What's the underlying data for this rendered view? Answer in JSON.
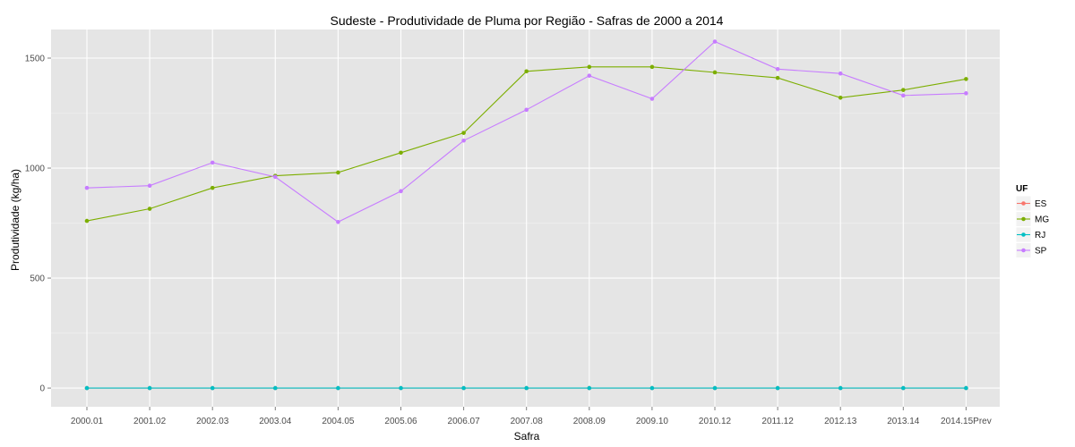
{
  "chart_data": {
    "type": "line",
    "title": "Sudeste  - Produtividade de Pluma por Região - Safras de 2000 a 2014",
    "xlabel": "Safra",
    "ylabel": "Produtividade (kg/ha)",
    "categories": [
      "2000.01",
      "2001.02",
      "2002.03",
      "2003.04",
      "2004.05",
      "2005.06",
      "2006.07",
      "2007.08",
      "2008.09",
      "2009.10",
      "2010.12",
      "2011.12",
      "2012.13",
      "2013.14",
      "2014.15Prev"
    ],
    "yticks": [
      0,
      500,
      1000,
      1500
    ],
    "ylim": [
      -85,
      1630
    ],
    "grid": true,
    "legend_position": "right",
    "legend_title": "UF",
    "series": [
      {
        "name": "ES",
        "color": "#F8766D",
        "values": [
          0,
          0,
          0,
          0,
          0,
          0,
          0,
          0,
          0,
          0,
          0,
          0,
          0,
          0,
          0
        ]
      },
      {
        "name": "MG",
        "color": "#7CAE00",
        "values": [
          760,
          815,
          910,
          965,
          980,
          1070,
          1160,
          1440,
          1460,
          1460,
          1435,
          1410,
          1320,
          1355,
          1405
        ]
      },
      {
        "name": "RJ",
        "color": "#00BFC4",
        "values": [
          0,
          0,
          0,
          0,
          0,
          0,
          0,
          0,
          0,
          0,
          0,
          0,
          0,
          0,
          0
        ]
      },
      {
        "name": "SP",
        "color": "#C77CFF",
        "values": [
          910,
          920,
          1025,
          960,
          755,
          895,
          1125,
          1265,
          1420,
          1315,
          1575,
          1450,
          1430,
          1330,
          1340
        ]
      }
    ]
  }
}
